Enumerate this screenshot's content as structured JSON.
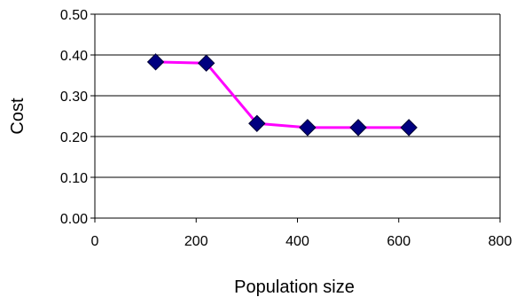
{
  "chart_data": {
    "type": "line",
    "title": "",
    "xlabel": "Population size",
    "ylabel": "Cost",
    "xlim": [
      0,
      800
    ],
    "ylim": [
      0,
      0.5
    ],
    "x_ticks": [
      0,
      200,
      400,
      600,
      800
    ],
    "y_ticks": [
      0,
      0.1,
      0.2,
      0.3,
      0.4,
      0.5
    ],
    "x_tick_labels": [
      "0",
      "200",
      "400",
      "600",
      "800"
    ],
    "y_tick_labels": [
      "0.00",
      "0.10",
      "0.20",
      "0.30",
      "0.40",
      "0.50"
    ],
    "grid": "horizontal",
    "legend": "none",
    "series": [
      {
        "x": [
          120,
          220,
          320,
          420,
          520,
          620
        ],
        "y": [
          0.383,
          0.38,
          0.232,
          0.222,
          0.222,
          0.222
        ],
        "line_color": "#FF00FF",
        "marker_color": "#000080",
        "marker": "diamond"
      }
    ]
  }
}
